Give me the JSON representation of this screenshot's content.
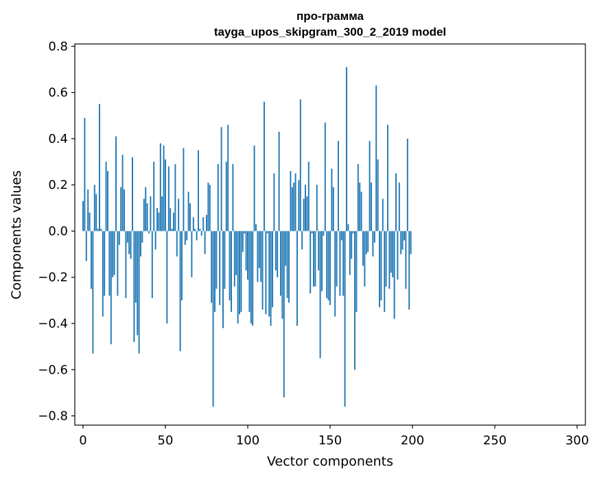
{
  "chart_data": {
    "type": "bar",
    "title": "про-грамма",
    "subtitle": "tayga_upos_skipgram_300_2_2019 model",
    "xlabel": "Vector components",
    "ylabel": "Components values",
    "xlim": [
      -5,
      305
    ],
    "ylim": [
      -0.84,
      0.81
    ],
    "x_ticks": [
      0,
      50,
      100,
      150,
      200,
      250,
      300
    ],
    "x_tick_labels": [
      "0",
      "50",
      "100",
      "150",
      "200",
      "250",
      "300"
    ],
    "y_ticks": [
      0.8,
      0.6,
      0.4,
      0.2,
      0.0,
      -0.2,
      -0.4,
      -0.6,
      -0.8
    ],
    "y_tick_labels": [
      "0.8",
      "0.6",
      "0.4",
      "0.2",
      "0.0",
      "−0.2",
      "−0.4",
      "−0.6",
      "−0.8"
    ],
    "bar_color": "#1f77b4",
    "values": [
      0.13,
      0.49,
      -0.13,
      0.18,
      0.08,
      -0.25,
      -0.53,
      0.2,
      0.16,
      0.01,
      0.55,
      0.01,
      -0.37,
      -0.28,
      0.3,
      0.26,
      -0.28,
      -0.49,
      -0.2,
      -0.19,
      0.41,
      -0.28,
      -0.06,
      0.19,
      0.33,
      0.18,
      -0.29,
      -0.05,
      -0.1,
      -0.12,
      0.32,
      -0.48,
      -0.31,
      -0.45,
      -0.53,
      -0.11,
      -0.05,
      0.14,
      0.19,
      0.12,
      -0.01,
      0.15,
      -0.29,
      0.3,
      -0.08,
      0.1,
      0.08,
      0.38,
      0.15,
      0.37,
      0.31,
      -0.4,
      0.28,
      0.1,
      0.01,
      0.08,
      0.29,
      -0.11,
      0.14,
      -0.52,
      -0.3,
      0.36,
      -0.06,
      -0.04,
      0.17,
      0.12,
      -0.2,
      0.06,
      0.01,
      -0.04,
      0.35,
      0.01,
      -0.02,
      0.06,
      -0.1,
      0.07,
      0.21,
      0.2,
      -0.31,
      -0.76,
      -0.35,
      -0.25,
      0.29,
      -0.32,
      0.45,
      -0.42,
      -0.25,
      0.3,
      0.46,
      -0.3,
      -0.35,
      0.29,
      -0.24,
      -0.19,
      -0.4,
      -0.36,
      -0.35,
      -0.09,
      -0.01,
      -0.17,
      -0.21,
      -0.35,
      -0.4,
      -0.41,
      0.37,
      0.03,
      -0.22,
      -0.16,
      -0.22,
      -0.34,
      0.56,
      -0.36,
      -0.01,
      -0.37,
      -0.41,
      -0.33,
      0.25,
      -0.17,
      -0.2,
      0.43,
      -0.28,
      -0.38,
      -0.72,
      -0.15,
      -0.29,
      -0.31,
      0.26,
      0.19,
      0.21,
      0.25,
      -0.41,
      0.22,
      0.57,
      -0.08,
      0.14,
      0.2,
      0.15,
      0.3,
      -0.27,
      -0.01,
      -0.24,
      -0.24,
      0.2,
      -0.17,
      -0.55,
      -0.26,
      -0.02,
      0.47,
      -0.29,
      -0.3,
      -0.32,
      0.27,
      0.19,
      -0.37,
      -0.24,
      0.39,
      -0.28,
      -0.04,
      -0.28,
      -0.76,
      0.71,
      0.03,
      -0.19,
      -0.12,
      -0.01,
      -0.6,
      -0.35,
      0.29,
      0.21,
      0.17,
      -0.15,
      -0.24,
      -0.1,
      -0.09,
      0.39,
      0.21,
      -0.11,
      -0.05,
      0.63,
      0.31,
      -0.33,
      -0.3,
      0.14,
      -0.35,
      -0.24,
      0.46,
      -0.25,
      -0.18,
      -0.2,
      -0.38,
      0.25,
      -0.21,
      0.21,
      -0.1,
      -0.08,
      -0.04,
      -0.25,
      0.4,
      -0.34,
      -0.1
    ]
  }
}
